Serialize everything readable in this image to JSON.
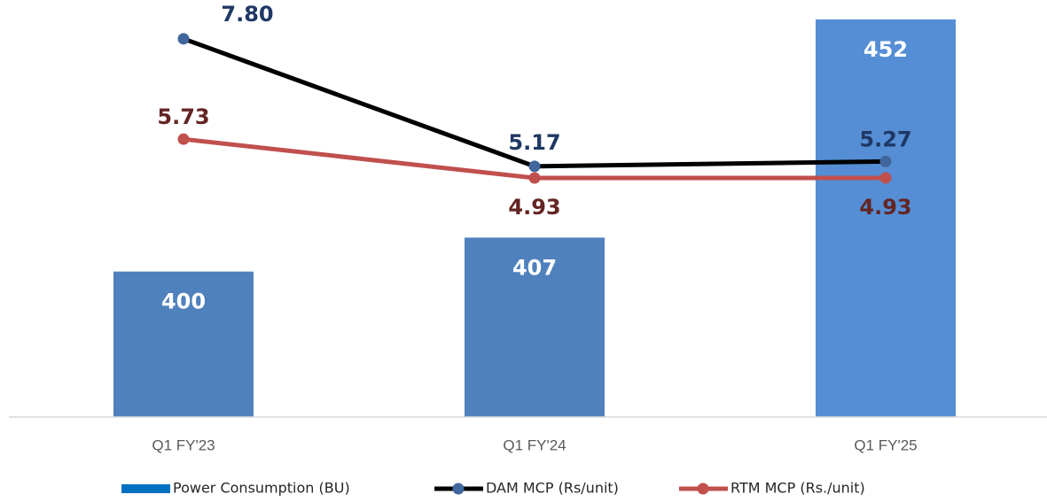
{
  "chart_data": {
    "type": "bar-line",
    "categories": [
      "Q1 FY'23",
      "Q1 FY'24",
      "Q1 FY'25"
    ],
    "ylim": [
      370,
      456
    ],
    "y2lim": [
      0,
      8.6
    ],
    "series": [
      {
        "name": "Power Consumption (BU)",
        "type": "bar",
        "color": "#4f81bd",
        "colors": [
          "#4f81bd",
          "#4f81bd",
          "#558ed5"
        ],
        "values": [
          400,
          407,
          452
        ]
      },
      {
        "name": "DAM MCP (Rs/unit)",
        "type": "line",
        "axis": "y2",
        "color": "#000000",
        "marker_color": "#41669e",
        "label_color": "#1f3864",
        "values": [
          7.8,
          5.17,
          5.27
        ],
        "value_labels": [
          "7.80",
          "5.17",
          "5.27"
        ]
      },
      {
        "name": "RTM MCP (Rs./unit)",
        "type": "line",
        "axis": "y2",
        "color": "#c0504d",
        "marker_color": "#c0504d",
        "label_color": "#632523",
        "values": [
          5.73,
          4.93,
          4.93
        ],
        "value_labels": [
          "5.73",
          "4.93",
          "4.93"
        ]
      }
    ]
  }
}
